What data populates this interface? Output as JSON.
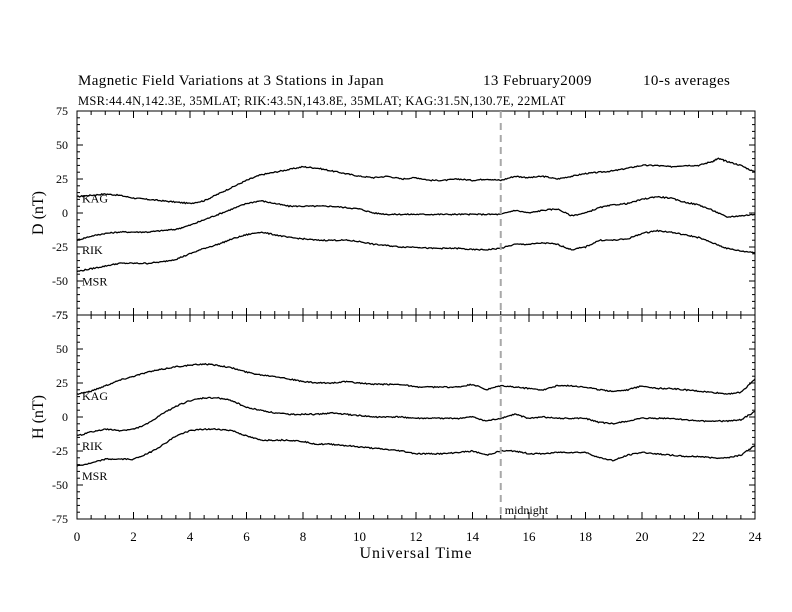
{
  "title": {
    "main": "Magnetic Field Variations at 3 Stations in Japan",
    "date": "13 February2009",
    "averaging": "10-s averages"
  },
  "subtitle": "MSR:44.4N,142.3E, 35MLAT;  RIK:43.5N,143.8E, 35MLAT;  KAG:31.5N,130.7E, 22MLAT",
  "chart_data": [
    {
      "type": "line",
      "ylabel": "D (nT)",
      "ylim": [
        -75,
        75
      ],
      "yticks": [
        75,
        50,
        25,
        0,
        -25,
        -50,
        -75
      ],
      "xlim": [
        0,
        24
      ],
      "xticks": [
        0,
        2,
        4,
        6,
        8,
        10,
        12,
        14,
        16,
        18,
        20,
        22,
        24
      ],
      "grid": false,
      "series": [
        {
          "name": "KAG",
          "x": [
            0,
            0.5,
            1,
            1.5,
            2,
            2.5,
            3,
            3.5,
            4,
            4.5,
            5,
            5.5,
            6,
            6.5,
            7,
            7.5,
            8,
            8.5,
            9,
            9.5,
            10,
            10.5,
            11,
            11.5,
            12,
            12.5,
            13,
            13.5,
            14,
            14.5,
            15,
            15.5,
            16,
            16.5,
            17,
            17.5,
            18,
            18.5,
            19,
            19.5,
            20,
            20.5,
            21,
            21.5,
            22,
            22.5,
            22.7,
            23,
            23.5,
            24
          ],
          "y": [
            12,
            13,
            14,
            13,
            11,
            10,
            9,
            8,
            7,
            9,
            14,
            19,
            24,
            28,
            30,
            32,
            34,
            33,
            31,
            29,
            27,
            26,
            27,
            25,
            26,
            24,
            24,
            25,
            24,
            25,
            24,
            27,
            26,
            27,
            25,
            27,
            29,
            30,
            31,
            33,
            35,
            35,
            34,
            35,
            35,
            38,
            40,
            38,
            35,
            30
          ]
        },
        {
          "name": "RIK",
          "x": [
            0,
            0.5,
            1,
            1.5,
            2,
            2.5,
            3,
            3.5,
            4,
            4.5,
            5,
            5.5,
            6,
            6.5,
            7,
            7.5,
            8,
            8.5,
            9,
            9.5,
            10,
            10.5,
            11,
            11.5,
            12,
            12.5,
            13,
            13.5,
            14,
            14.5,
            15,
            15.5,
            16,
            16.5,
            17,
            17.5,
            18,
            18.5,
            19,
            19.5,
            20,
            20.5,
            21,
            21.5,
            22,
            22.5,
            23,
            23.5,
            24
          ],
          "y": [
            -20,
            -17,
            -15,
            -14,
            -14,
            -14,
            -13,
            -12,
            -9,
            -5,
            -1,
            3,
            7,
            9,
            7,
            5,
            5,
            5,
            5,
            4,
            3,
            0,
            -1,
            -1,
            -1,
            -1,
            -1,
            -1,
            -1,
            -1,
            -1,
            2,
            0,
            2,
            3,
            -2,
            0,
            4,
            6,
            7,
            10,
            12,
            11,
            8,
            6,
            2,
            -3,
            -2,
            -1
          ]
        },
        {
          "name": "MSR",
          "x": [
            0,
            0.5,
            1,
            1.5,
            2,
            2.5,
            3,
            3.5,
            4,
            4.5,
            5,
            5.5,
            6,
            6.5,
            7,
            7.5,
            8,
            8.5,
            9,
            9.5,
            10,
            10.5,
            11,
            11.5,
            12,
            12.5,
            13,
            13.5,
            14,
            14.5,
            15,
            15.5,
            16,
            16.5,
            17,
            17.5,
            18,
            18.5,
            19,
            19.5,
            20,
            20.5,
            21,
            21.5,
            22,
            22.5,
            23,
            23.5,
            24
          ],
          "y": [
            -43,
            -41,
            -39,
            -37,
            -37,
            -37,
            -36,
            -34,
            -30,
            -26,
            -23,
            -19,
            -16,
            -14,
            -16,
            -18,
            -19,
            -20,
            -20,
            -20,
            -21,
            -23,
            -24,
            -25,
            -25,
            -26,
            -26,
            -26,
            -27,
            -27,
            -26,
            -23,
            -23,
            -22,
            -23,
            -27,
            -25,
            -20,
            -20,
            -19,
            -15,
            -13,
            -14,
            -16,
            -18,
            -22,
            -26,
            -28,
            -29
          ]
        }
      ]
    },
    {
      "type": "line",
      "ylabel": "H (nT)",
      "xlabel": "Universal Time",
      "ylim": [
        -75,
        75
      ],
      "yticks": [
        75,
        50,
        25,
        0,
        -25,
        -50,
        -75
      ],
      "xlim": [
        0,
        24
      ],
      "xticks": [
        0,
        2,
        4,
        6,
        8,
        10,
        12,
        14,
        16,
        18,
        20,
        22,
        24
      ],
      "grid": false,
      "series": [
        {
          "name": "KAG",
          "x": [
            0,
            0.5,
            1,
            1.5,
            2,
            2.5,
            3,
            3.5,
            4,
            4.5,
            5,
            5.5,
            6,
            6.5,
            7,
            7.5,
            8,
            8.5,
            9,
            9.5,
            10,
            10.5,
            11,
            11.5,
            12,
            12.5,
            13,
            13.5,
            14,
            14.5,
            15,
            15.5,
            16,
            16.5,
            17,
            17.5,
            18,
            18.5,
            19,
            19.5,
            20,
            20.5,
            21,
            21.5,
            22,
            22.5,
            23,
            23.5,
            24
          ],
          "y": [
            17,
            19,
            23,
            27,
            30,
            33,
            35,
            37,
            38,
            39,
            38,
            36,
            33,
            31,
            30,
            28,
            26,
            25,
            25,
            26,
            25,
            24,
            24,
            24,
            22,
            22,
            22,
            22,
            24,
            20,
            23,
            22,
            21,
            20,
            23,
            23,
            22,
            20,
            19,
            20,
            23,
            21,
            21,
            20,
            19,
            18,
            17,
            18,
            28
          ]
        },
        {
          "name": "RIK",
          "x": [
            0,
            0.5,
            1,
            1.5,
            2,
            2.5,
            3,
            3.5,
            4,
            4.5,
            5,
            5.5,
            6,
            6.5,
            7,
            7.5,
            8,
            8.5,
            9,
            9.5,
            10,
            10.5,
            11,
            11.5,
            12,
            12.5,
            13,
            13.5,
            14,
            14.5,
            15,
            15.5,
            16,
            16.5,
            17,
            17.5,
            18,
            18.5,
            19,
            19.5,
            20,
            20.5,
            21,
            21.5,
            22,
            22.5,
            23,
            23.5,
            24
          ],
          "y": [
            -14,
            -11,
            -9,
            -10,
            -9,
            -5,
            2,
            8,
            12,
            14,
            14,
            12,
            7,
            5,
            3,
            2,
            2,
            2,
            3,
            2,
            1,
            0,
            0,
            0,
            -1,
            -1,
            -1,
            -1,
            0,
            -3,
            -1,
            2,
            -1,
            0,
            -1,
            -1,
            -1,
            -4,
            -5,
            -3,
            -1,
            -1,
            -1,
            -2,
            -3,
            -3,
            -3,
            -2,
            4
          ]
        },
        {
          "name": "MSR",
          "x": [
            0,
            0.5,
            1,
            1.5,
            2,
            2.5,
            3,
            3.5,
            4,
            4.5,
            5,
            5.5,
            6,
            6.5,
            7,
            7.5,
            8,
            8.5,
            9,
            9.5,
            10,
            10.5,
            11,
            11.5,
            12,
            12.5,
            13,
            13.5,
            14,
            14.5,
            15,
            15.5,
            16,
            16.5,
            17,
            17.5,
            18,
            18.5,
            19,
            19.5,
            20,
            20.5,
            21,
            21.5,
            22,
            22.5,
            23,
            23.5,
            24
          ],
          "y": [
            -36,
            -34,
            -31,
            -31,
            -31,
            -27,
            -21,
            -14,
            -10,
            -9,
            -9,
            -10,
            -14,
            -17,
            -17,
            -17,
            -18,
            -20,
            -20,
            -21,
            -22,
            -23,
            -24,
            -25,
            -27,
            -27,
            -27,
            -26,
            -25,
            -28,
            -25,
            -25,
            -27,
            -27,
            -26,
            -26,
            -26,
            -30,
            -32,
            -28,
            -26,
            -27,
            -28,
            -29,
            -29,
            -30,
            -30,
            -28,
            -21
          ]
        }
      ]
    }
  ],
  "annotations": {
    "vline_x": 15,
    "vline_label": "midnight"
  },
  "colors": {
    "line": "#000000",
    "vline": "#a8a8a8"
  }
}
